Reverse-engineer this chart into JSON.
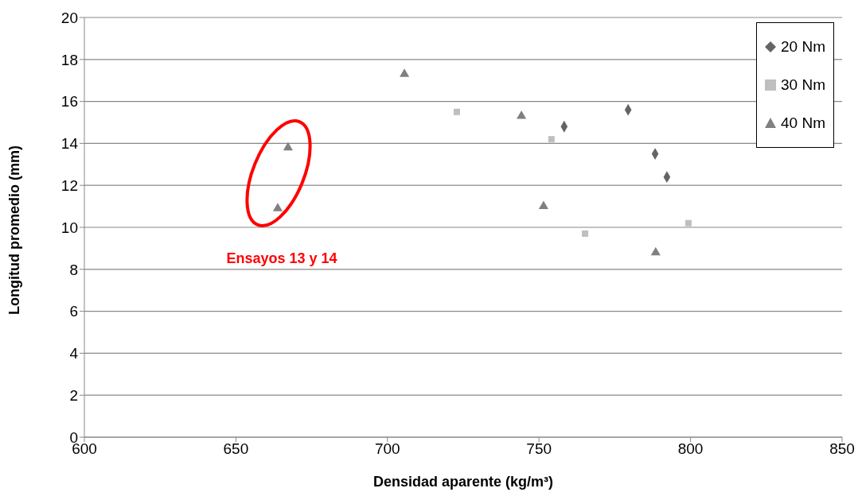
{
  "chart_data": {
    "type": "scatter",
    "xlabel": "Densidad aparente (kg/m³)",
    "ylabel": "Longitud promedio (mm)",
    "xlim": [
      600,
      850
    ],
    "xticks": [
      600,
      650,
      700,
      750,
      800,
      850
    ],
    "ylim": [
      0,
      20
    ],
    "yticks": [
      0,
      2,
      4,
      6,
      8,
      10,
      12,
      14,
      16,
      18,
      20
    ],
    "grid": "y",
    "legend": "top right",
    "series": [
      {
        "name": "20 Nm",
        "color": "#646464",
        "marker": "diamond",
        "x": [
          758.3,
          779.4,
          788.3,
          792.2
        ],
        "values": [
          14.8,
          15.6,
          13.5,
          12.4
        ]
      },
      {
        "name": "30 Nm",
        "color": "#bfbfbf",
        "marker": "square",
        "x": [
          722.9,
          754.1,
          765.2,
          799.3
        ],
        "values": [
          15.5,
          14.2,
          9.7,
          10.2
        ]
      },
      {
        "name": "40 Nm",
        "color": "#808080",
        "marker": "triangle",
        "x": [
          705.6,
          744.2,
          751.5,
          788.5,
          667.2,
          663.8
        ],
        "values": [
          17.3,
          15.3,
          11.0,
          8.8,
          13.8,
          10.9
        ]
      }
    ],
    "annotations": [
      "Ensayos 13 y 14"
    ]
  }
}
